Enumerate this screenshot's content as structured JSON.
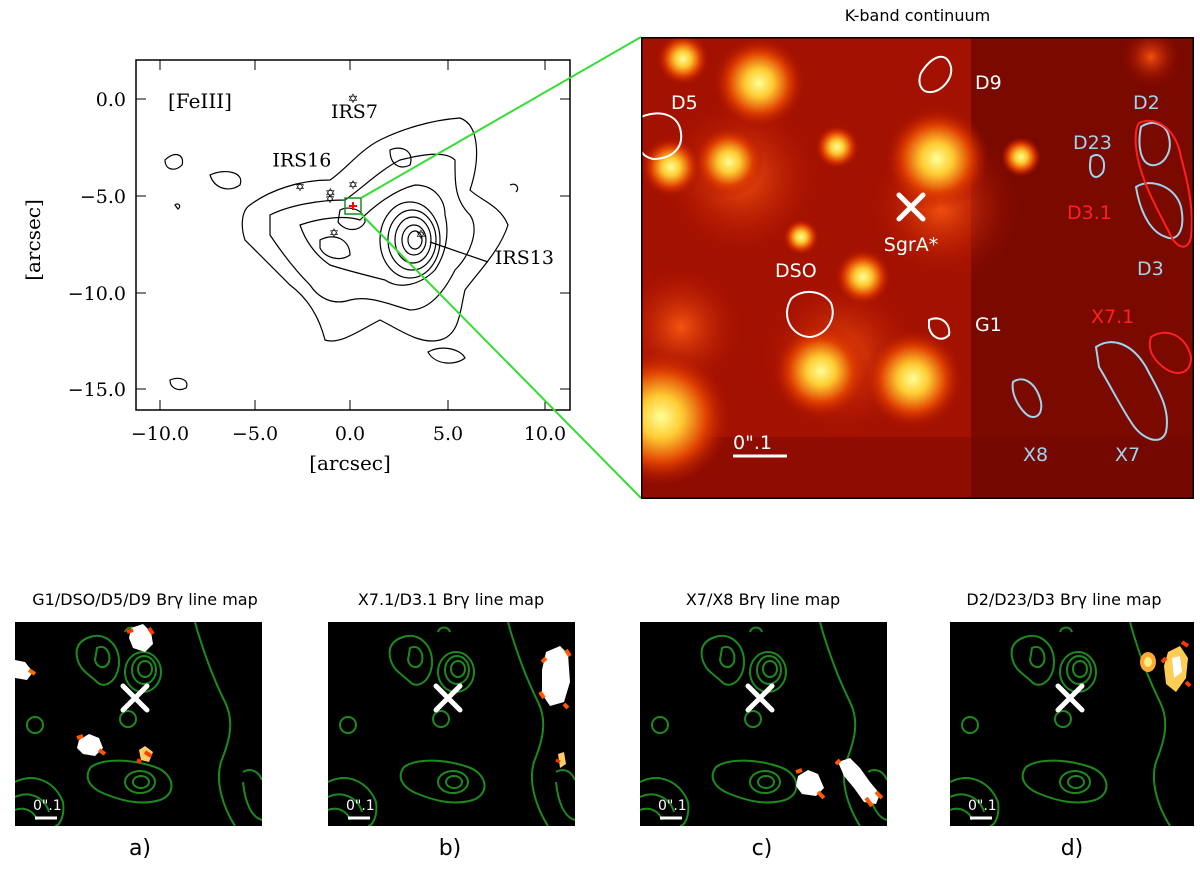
{
  "contour_plot": {
    "inset_label": "[FeIII]",
    "x_axis_label": "[arcsec]",
    "y_axis_label": "[arcsec]",
    "x_ticks": [
      "−10.0",
      "−5.0",
      "0.0",
      "5.0",
      "10.0"
    ],
    "y_ticks": [
      "0.0",
      "−5.0",
      "−10.0",
      "−15.0"
    ],
    "x_range": [
      -11.5,
      11.5
    ],
    "y_range": [
      -16.5,
      2.0
    ],
    "sources": [
      {
        "label": "IRS7",
        "x": 0.0,
        "y": 0.0
      },
      {
        "label": "IRS16",
        "x": -1.2,
        "y": -5.0
      },
      {
        "label": "IRS13",
        "x": 3.6,
        "y": -7.2
      }
    ]
  },
  "kband": {
    "title": "K-band continuum",
    "scale_bar": "0\".1",
    "center_label": "SgrA*",
    "labels": [
      {
        "text": "D5",
        "color": "#ffffff"
      },
      {
        "text": "D9",
        "color": "#ffffff"
      },
      {
        "text": "D2",
        "color": "#9ed4ec"
      },
      {
        "text": "D23",
        "color": "#9ed4ec"
      },
      {
        "text": "D3.1",
        "color": "#ff2020"
      },
      {
        "text": "D3",
        "color": "#9ed4ec"
      },
      {
        "text": "DSO",
        "color": "#ffffff"
      },
      {
        "text": "G1",
        "color": "#ffffff"
      },
      {
        "text": "X7.1",
        "color": "#ff2020"
      },
      {
        "text": "X8",
        "color": "#9ed4ec"
      },
      {
        "text": "X7",
        "color": "#9ed4ec"
      }
    ]
  },
  "line_maps": [
    {
      "title": "G1/DSO/D5/D9 Brγ line map",
      "scale": "0\".1",
      "label": "a)"
    },
    {
      "title": "X7.1/D3.1 Brγ line map",
      "scale": "0\".1",
      "label": "b)"
    },
    {
      "title": "X7/X8 Brγ line map",
      "scale": "0\".1",
      "label": "c)"
    },
    {
      "title": "D2/D23/D3 Brγ line map",
      "scale": "0\".1",
      "label": "d)"
    }
  ],
  "colors": {
    "background_dark": "#3a0000",
    "star_bright": "#ffff99",
    "contour_green": "#1e8a1e",
    "zoom_line": "#33dd33",
    "blue_contour": "#9ed4ec",
    "red_contour": "#ff2020"
  }
}
